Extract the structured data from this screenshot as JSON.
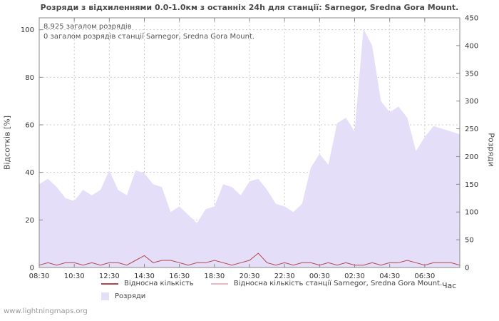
{
  "title": "Розряди з відхиленнями 0.0-1.0км з останніх 24h для станції: Sarnegor, Sredna Gora Mount.",
  "annotations": {
    "total": "8,925 загалом розрядів",
    "station_total": "0 загалом розрядів станції Sarnegor, Sredna Gora Mount."
  },
  "legend": {
    "relative": "Відносна кількість",
    "station_relative": "Відносна кількість станції Sarnegor, Sredna Gora Mount.",
    "discharges": "Розряди"
  },
  "footer": "www.lightningmaps.org",
  "chart_data": {
    "type": "area",
    "xlabel": "Час",
    "x_ticks": [
      "08:30",
      "10:30",
      "12:30",
      "14:30",
      "16:30",
      "18:30",
      "20:30",
      "22:30",
      "00:30",
      "02:30",
      "04:30",
      "06:30"
    ],
    "x_hours_span": 24,
    "left_axis": {
      "label": "Відсотків  [%]",
      "ticks": [
        0,
        20,
        40,
        60,
        80,
        100
      ],
      "top_value": 105
    },
    "right_axis": {
      "label": "Розряди",
      "ticks": [
        0,
        50,
        100,
        150,
        200,
        250,
        300,
        350,
        400,
        450
      ],
      "top_value": 450
    },
    "grid": true,
    "legend_position": "bottom",
    "colors": {
      "grid": "#cccccc",
      "border": "#888888"
    },
    "series": [
      {
        "name": "Розряди",
        "style": "area",
        "axis": "right",
        "color": "#e4def8",
        "values": [
          150,
          160,
          145,
          125,
          120,
          140,
          130,
          140,
          175,
          140,
          130,
          175,
          170,
          150,
          145,
          100,
          110,
          95,
          80,
          105,
          110,
          150,
          145,
          130,
          155,
          160,
          140,
          115,
          110,
          100,
          115,
          180,
          205,
          185,
          260,
          270,
          245,
          430,
          400,
          300,
          280,
          290,
          270,
          210,
          235,
          255,
          250,
          245,
          240
        ]
      },
      {
        "name": "Відносна кількість",
        "style": "line",
        "axis": "left",
        "color": "#b4464b",
        "values": [
          1,
          2,
          1,
          2,
          2,
          1,
          2,
          1,
          2,
          2,
          1,
          3,
          5,
          2,
          3,
          3,
          2,
          1,
          2,
          2,
          3,
          2,
          1,
          2,
          3,
          6,
          2,
          1,
          2,
          1,
          2,
          2,
          1,
          2,
          1,
          2,
          1,
          1,
          2,
          1,
          2,
          2,
          3,
          2,
          1,
          2,
          2,
          2,
          1
        ]
      },
      {
        "name": "Відносна кількість станції Sarnegor, Sredna Gora Mount.",
        "style": "line",
        "axis": "left",
        "color": "#f2b6c2",
        "values": [
          0,
          0,
          0,
          0,
          0,
          0,
          0,
          0,
          0,
          0,
          0,
          0,
          0,
          0,
          0,
          0,
          0,
          0,
          0,
          0,
          0,
          0,
          0,
          0,
          0,
          0,
          0,
          0,
          0,
          0,
          0,
          0,
          0,
          0,
          0,
          0,
          0,
          0,
          0,
          0,
          0,
          0,
          0,
          0,
          0,
          0,
          0,
          0,
          0
        ]
      }
    ]
  }
}
